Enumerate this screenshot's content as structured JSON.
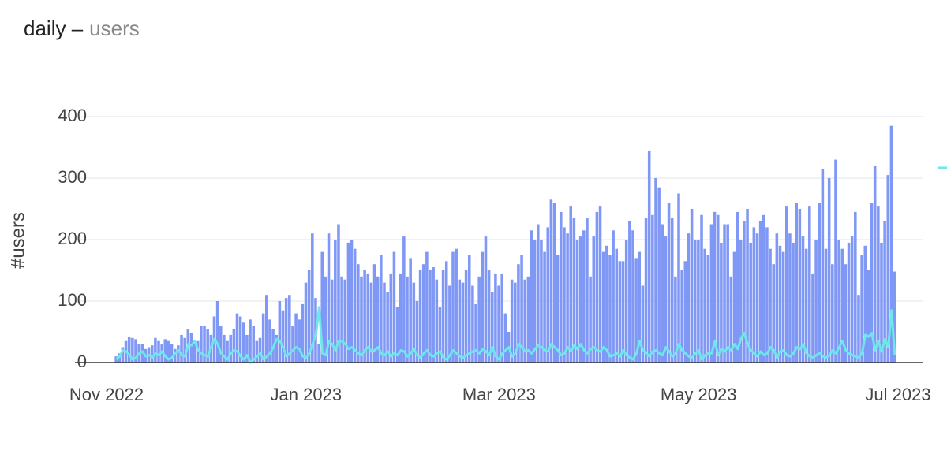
{
  "chart_data": {
    "type": "bar",
    "title": "daily –",
    "subtitle": "users",
    "y_label": "#users",
    "x": [
      3,
      4,
      5,
      6,
      7,
      8,
      9,
      10,
      11,
      12,
      13,
      14,
      15,
      16,
      17,
      18,
      19,
      20,
      21,
      22,
      23,
      24,
      25,
      26,
      27,
      28,
      29,
      30,
      31,
      32,
      33,
      34,
      35,
      36,
      37,
      38,
      39,
      40,
      41,
      42,
      43,
      44,
      45,
      46,
      47,
      48,
      49,
      50,
      51,
      52,
      53,
      54,
      55,
      56,
      57,
      58,
      59,
      60,
      61,
      62,
      63,
      64,
      65,
      66,
      67,
      68,
      69,
      70,
      71,
      72,
      73,
      74,
      75,
      76,
      77,
      78,
      79,
      80,
      81,
      82,
      83,
      84,
      85,
      86,
      87,
      88,
      89,
      90,
      91,
      92,
      93,
      94,
      95,
      96,
      97,
      98,
      99,
      100,
      101,
      102,
      103,
      104,
      105,
      106,
      107,
      108,
      109,
      110,
      111,
      112,
      113,
      114,
      115,
      116,
      117,
      118,
      119,
      120,
      121,
      122,
      123,
      124,
      125,
      126,
      127,
      128,
      129,
      130,
      131,
      132,
      133,
      134,
      135,
      136,
      137,
      138,
      139,
      140,
      141,
      142,
      143,
      144,
      145,
      146,
      147,
      148,
      149,
      150,
      151,
      152,
      153,
      154,
      155,
      156,
      157,
      158,
      159,
      160,
      161,
      162,
      163,
      164,
      165,
      166,
      167,
      168,
      169,
      170,
      171,
      172,
      173,
      174,
      175,
      176,
      177,
      178,
      179,
      180,
      181,
      182,
      183,
      184,
      185,
      186,
      187,
      188,
      189,
      190,
      191,
      192,
      193,
      194,
      195,
      196,
      197,
      198,
      199,
      200,
      201,
      202,
      203,
      204,
      205,
      206,
      207,
      208,
      209,
      210,
      211,
      212,
      213,
      214,
      215,
      216,
      217,
      218,
      219,
      220,
      221,
      222,
      223,
      224,
      225,
      226,
      227,
      228,
      229,
      230,
      231,
      232,
      233,
      234,
      235,
      236,
      237,
      238,
      239,
      240,
      241
    ],
    "xlim": [
      0,
      242
    ],
    "xticks": [
      {
        "value": 0,
        "label": "Nov 2022"
      },
      {
        "value": 61,
        "label": "Jan 2023"
      },
      {
        "value": 120,
        "label": "Mar 2023"
      },
      {
        "value": 181,
        "label": "May 2023"
      },
      {
        "value": 242,
        "label": "Jul 2023"
      }
    ],
    "ylim": [
      0,
      400
    ],
    "yticks": [
      0,
      100,
      200,
      300,
      400
    ],
    "grid": true,
    "series": [
      {
        "type": "bar",
        "color": "#7f97f5",
        "values": [
          10,
          15,
          25,
          35,
          42,
          40,
          38,
          30,
          30,
          22,
          25,
          28,
          40,
          35,
          30,
          38,
          35,
          30,
          22,
          28,
          45,
          40,
          55,
          48,
          30,
          35,
          60,
          60,
          55,
          45,
          75,
          100,
          60,
          45,
          35,
          45,
          55,
          80,
          75,
          65,
          45,
          70,
          60,
          35,
          40,
          80,
          110,
          70,
          55,
          45,
          100,
          85,
          105,
          110,
          60,
          80,
          70,
          95,
          130,
          150,
          210,
          105,
          30,
          180,
          140,
          210,
          135,
          200,
          225,
          140,
          135,
          195,
          200,
          185,
          160,
          140,
          150,
          145,
          130,
          160,
          140,
          175,
          130,
          115,
          145,
          180,
          90,
          145,
          205,
          140,
          170,
          130,
          100,
          150,
          160,
          180,
          150,
          155,
          135,
          90,
          150,
          165,
          125,
          180,
          185,
          135,
          130,
          150,
          175,
          125,
          95,
          140,
          180,
          205,
          150,
          115,
          145,
          125,
          145,
          80,
          50,
          135,
          130,
          160,
          175,
          135,
          140,
          215,
          200,
          225,
          200,
          180,
          220,
          265,
          260,
          175,
          245,
          220,
          210,
          255,
          235,
          200,
          205,
          215,
          235,
          140,
          205,
          245,
          255,
          180,
          190,
          175,
          215,
          185,
          165,
          165,
          200,
          230,
          215,
          170,
          180,
          125,
          235,
          345,
          240,
          300,
          285,
          225,
          205,
          260,
          235,
          140,
          275,
          150,
          165,
          210,
          250,
          200,
          200,
          240,
          185,
          175,
          225,
          245,
          240,
          195,
          225,
          225,
          140,
          180,
          245,
          200,
          230,
          250,
          195,
          220,
          210,
          230,
          240,
          220,
          185,
          160,
          210,
          190,
          180,
          255,
          210,
          195,
          260,
          250,
          205,
          185,
          255,
          145,
          200,
          260,
          315,
          185,
          300,
          160,
          330,
          200,
          185,
          160,
          195,
          205,
          245,
          110,
          175,
          190,
          150,
          260,
          320,
          255,
          195,
          230,
          305,
          385,
          148
        ]
      },
      {
        "type": "line",
        "color": "#6ee6ea",
        "values": [
          5,
          10,
          20,
          18,
          12,
          5,
          8,
          15,
          18,
          10,
          12,
          8,
          15,
          12,
          18,
          10,
          5,
          8,
          15,
          20,
          12,
          10,
          30,
          28,
          35,
          20,
          15,
          12,
          10,
          25,
          38,
          30,
          15,
          10,
          5,
          15,
          20,
          18,
          10,
          5,
          12,
          0,
          5,
          10,
          15,
          5,
          10,
          15,
          25,
          38,
          35,
          25,
          10,
          15,
          20,
          25,
          22,
          10,
          8,
          15,
          30,
          45,
          90,
          15,
          12,
          35,
          30,
          20,
          35,
          35,
          30,
          22,
          25,
          20,
          15,
          12,
          20,
          25,
          18,
          20,
          25,
          15,
          12,
          18,
          10,
          15,
          12,
          20,
          18,
          10,
          15,
          22,
          12,
          8,
          15,
          20,
          12,
          10,
          15,
          18,
          8,
          5,
          12,
          20,
          15,
          10,
          8,
          12,
          15,
          18,
          20,
          15,
          22,
          18,
          12,
          25,
          10,
          5,
          15,
          20,
          25,
          10,
          15,
          30,
          25,
          18,
          20,
          15,
          22,
          28,
          25,
          20,
          18,
          30,
          25,
          20,
          12,
          15,
          25,
          18,
          28,
          22,
          30,
          20,
          15,
          22,
          25,
          20,
          18,
          25,
          20,
          10,
          12,
          15,
          10,
          20,
          12,
          8,
          5,
          15,
          35,
          20,
          15,
          10,
          18,
          20,
          15,
          12,
          25,
          18,
          10,
          15,
          30,
          20,
          15,
          10,
          8,
          15,
          20,
          5,
          12,
          15,
          15,
          35,
          12,
          22,
          18,
          25,
          20,
          30,
          22,
          40,
          48,
          30,
          20,
          15,
          10,
          18,
          12,
          15,
          25,
          20,
          8,
          18,
          20,
          12,
          10,
          15,
          25,
          22,
          30,
          15,
          10,
          8,
          12,
          15,
          10,
          8,
          12,
          20,
          15,
          25,
          35,
          20,
          15,
          12,
          10,
          8,
          15,
          45,
          42,
          48,
          20,
          35,
          18,
          38,
          25,
          85,
          12
        ]
      }
    ]
  }
}
